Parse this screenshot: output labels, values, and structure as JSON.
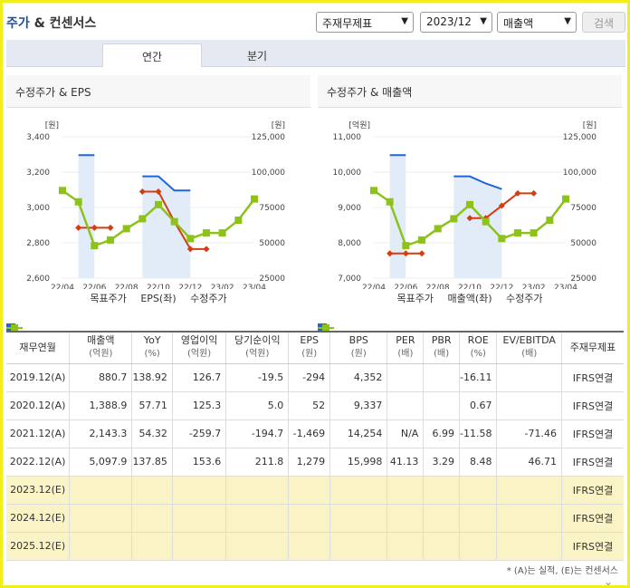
{
  "header": {
    "title_part1": "주가",
    "title_part2": " & 컨센서스",
    "select_type": "주재무제표",
    "select_period": "2023/12",
    "select_item": "매출액",
    "search_label": "검색"
  },
  "tabs": [
    {
      "label": "연간"
    },
    {
      "label": "분기"
    }
  ],
  "charts": {
    "left_title": "수정주가 & EPS",
    "right_title": "수정주가 & 매출액",
    "left_unit_left": "[원]",
    "left_unit_right": "[원]",
    "right_unit_left": "[억원]",
    "right_unit_right": "[원]",
    "left_legend": [
      "목표주가",
      "EPS(좌)",
      "수정주가"
    ],
    "right_legend": [
      "목표주가",
      "매출액(좌)",
      "수정주가"
    ]
  },
  "chart_data": [
    {
      "type": "line",
      "title": "수정주가 & EPS",
      "categories": [
        "22/04",
        "22/06",
        "22/08",
        "22/10",
        "22/12",
        "23/02",
        "23/04"
      ],
      "left_axis": {
        "ticks": [
          "3,400",
          "3,200",
          "3,000",
          "2,800",
          "2,600"
        ],
        "ylim": [
          2600,
          3400
        ]
      },
      "right_axis": {
        "ticks": [
          "125,000",
          "100,000",
          "75000",
          "50000",
          "25000"
        ],
        "ylim": [
          25000,
          125000
        ]
      },
      "series": [
        {
          "name": "목표주가",
          "axis": "right",
          "x": [
            0,
            0.5,
            1,
            1.5,
            2,
            2.5,
            3,
            3.5,
            4,
            4.5,
            5,
            5.5,
            6
          ],
          "values": [
            null,
            112000,
            112000,
            null,
            null,
            97000,
            97000,
            87000,
            87000,
            null,
            null,
            null,
            null
          ]
        },
        {
          "name": "EPS(좌)",
          "axis": "left",
          "x": [
            0,
            0.5,
            1,
            1.5,
            2,
            2.5,
            3,
            3.5,
            4,
            4.5,
            5,
            5.5,
            6
          ],
          "values": [
            null,
            2885,
            2885,
            2885,
            null,
            3090,
            3090,
            2920,
            2765,
            2765,
            null,
            null,
            null
          ]
        },
        {
          "name": "수정주가",
          "axis": "right",
          "x": [
            0,
            0.5,
            1,
            1.5,
            2,
            2.5,
            3,
            3.5,
            4,
            4.5,
            5,
            5.5,
            6
          ],
          "values": [
            87000,
            79000,
            48000,
            52000,
            60000,
            67000,
            77000,
            65000,
            53000,
            57000,
            57000,
            66000,
            81000
          ]
        }
      ]
    },
    {
      "type": "line",
      "title": "수정주가 & 매출액",
      "categories": [
        "22/04",
        "22/06",
        "22/08",
        "22/10",
        "22/12",
        "23/02",
        "23/04"
      ],
      "left_axis": {
        "ticks": [
          "11,000",
          "10,000",
          "9,000",
          "8,000",
          "7,000"
        ],
        "ylim": [
          7000,
          11000
        ]
      },
      "right_axis": {
        "ticks": [
          "125,000",
          "100,000",
          "75000",
          "50000",
          "25000"
        ],
        "ylim": [
          25000,
          125000
        ]
      },
      "series": [
        {
          "name": "목표주가",
          "axis": "right",
          "x": [
            0,
            0.5,
            1,
            1.5,
            2,
            2.5,
            3,
            3.5,
            4,
            4.5,
            5,
            5.5,
            6
          ],
          "values": [
            null,
            112000,
            112000,
            null,
            null,
            97000,
            97000,
            92000,
            88000,
            null,
            null,
            null,
            null
          ]
        },
        {
          "name": "매출액(좌)",
          "axis": "left",
          "x": [
            0,
            0.5,
            1,
            1.5,
            2,
            2.5,
            3,
            3.5,
            4,
            4.5,
            5,
            5.5,
            6
          ],
          "values": [
            null,
            7700,
            7700,
            7700,
            null,
            null,
            8700,
            8700,
            9050,
            9400,
            9400,
            null,
            null
          ]
        },
        {
          "name": "수정주가",
          "axis": "right",
          "x": [
            0,
            0.5,
            1,
            1.5,
            2,
            2.5,
            3,
            3.5,
            4,
            4.5,
            5,
            5.5,
            6
          ],
          "values": [
            87000,
            79000,
            48000,
            52000,
            60000,
            67000,
            77000,
            65000,
            53000,
            57000,
            57000,
            66000,
            81000
          ]
        }
      ]
    }
  ],
  "table": {
    "headers": [
      {
        "main": "재무연월",
        "sub": ""
      },
      {
        "main": "매출액",
        "sub": "(억원)"
      },
      {
        "main": "YoY",
        "sub": "(%)"
      },
      {
        "main": "영업이익",
        "sub": "(억원)"
      },
      {
        "main": "당기순이익",
        "sub": "(억원)"
      },
      {
        "main": "EPS",
        "sub": "(원)"
      },
      {
        "main": "BPS",
        "sub": "(원)"
      },
      {
        "main": "PER",
        "sub": "(배)"
      },
      {
        "main": "PBR",
        "sub": "(배)"
      },
      {
        "main": "ROE",
        "sub": "(%)"
      },
      {
        "main": "EV/EBITDA",
        "sub": "(배)"
      },
      {
        "main": "주재무제표",
        "sub": ""
      }
    ],
    "rows": [
      [
        "2019.12(A)",
        "880.7",
        "138.92",
        "126.7",
        "-19.5",
        "-294",
        "4,352",
        "",
        "",
        "-16.11",
        "",
        "IFRS연결"
      ],
      [
        "2020.12(A)",
        "1,388.9",
        "57.71",
        "125.3",
        "5.0",
        "52",
        "9,337",
        "",
        "",
        "0.67",
        "",
        "IFRS연결"
      ],
      [
        "2021.12(A)",
        "2,143.3",
        "54.32",
        "-259.7",
        "-194.7",
        "-1,469",
        "14,254",
        "N/A",
        "6.99",
        "-11.58",
        "-71.46",
        "IFRS연결"
      ],
      [
        "2022.12(A)",
        "5,097.9",
        "137.85",
        "153.6",
        "211.8",
        "1,279",
        "15,998",
        "41.13",
        "3.29",
        "8.48",
        "46.71",
        "IFRS연결"
      ],
      [
        "2023.12(E)",
        "",
        "",
        "",
        "",
        "",
        "",
        "",
        "",
        "",
        "",
        "IFRS연결"
      ],
      [
        "2024.12(E)",
        "",
        "",
        "",
        "",
        "",
        "",
        "",
        "",
        "",
        "",
        "IFRS연결"
      ],
      [
        "2025.12(E)",
        "",
        "",
        "",
        "",
        "",
        "",
        "",
        "",
        "",
        "",
        "IFRS연결"
      ]
    ]
  },
  "note": "* (A)는 실적, (E)는 컨센서스",
  "colors": {
    "target": "#1f66d6",
    "eps": "#d43c12",
    "price": "#8cc21a",
    "band": "#dfeaf8"
  }
}
